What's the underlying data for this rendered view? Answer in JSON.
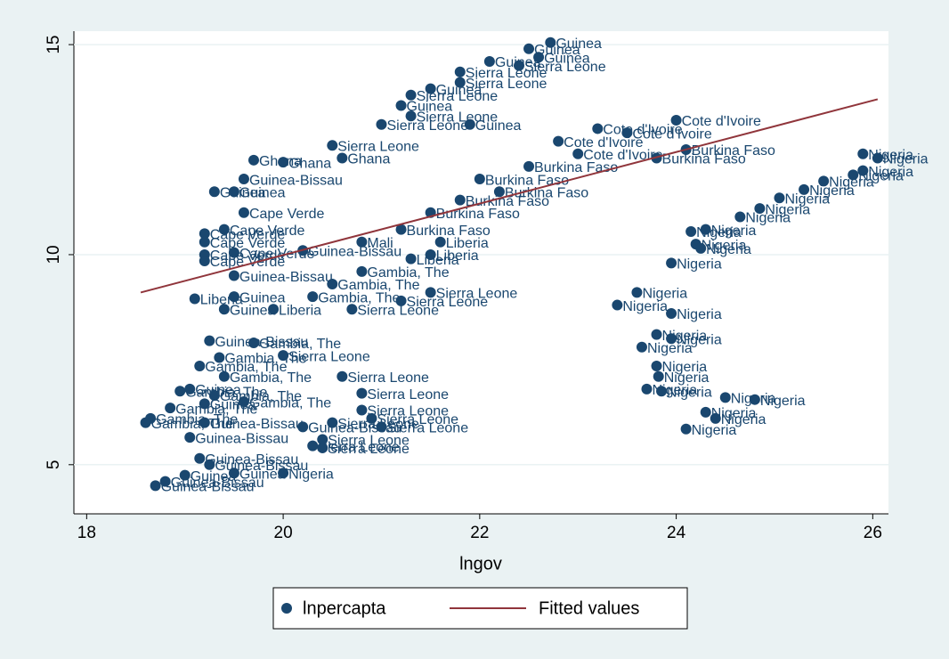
{
  "chart_data": {
    "type": "scatter",
    "x_label": "lngov",
    "xlim": [
      17.87,
      26.16
    ],
    "xticks": [
      18,
      20,
      22,
      24,
      26
    ],
    "ylim": [
      3.83,
      15.32
    ],
    "yticks": [
      5,
      10,
      15
    ],
    "grid": true,
    "legend": "bottom",
    "series": [
      {
        "name": "lnpercapta",
        "color": "#1a476f",
        "x": [
          22.72,
          22.5,
          22.6,
          22.4,
          22.1,
          21.8,
          21.8,
          21.5,
          21.3,
          21.2,
          21.3,
          21.0,
          21.9,
          23.2,
          24.0,
          23.5,
          22.8,
          24.1,
          23.8,
          23.0,
          22.5,
          22.0,
          22.2,
          21.8,
          21.5,
          21.2,
          21.6,
          21.5,
          21.3,
          20.8,
          20.5,
          20.6,
          20.0,
          19.7,
          19.6,
          19.5,
          19.3,
          19.6,
          19.4,
          19.2,
          19.2,
          19.2,
          19.2,
          19.5,
          20.2,
          19.5,
          20.8,
          20.5,
          19.1,
          19.5,
          19.4,
          19.9,
          20.7,
          21.2,
          21.5,
          20.3,
          19.25,
          19.7,
          19.35,
          20.0,
          19.15,
          19.4,
          20.6,
          20.8,
          19.05,
          18.95,
          19.3,
          19.6,
          19.2,
          20.8,
          18.85,
          18.65,
          18.6,
          19.2,
          20.2,
          20.5,
          20.9,
          21.0,
          19.05,
          20.3,
          20.4,
          20.4,
          19.15,
          19.25,
          20.0,
          19.5,
          19.0,
          18.8,
          18.7,
          25.9,
          26.05,
          25.9,
          25.8,
          25.5,
          25.3,
          25.05,
          24.85,
          24.65,
          24.3,
          24.15,
          24.2,
          24.25,
          23.95,
          23.6,
          23.4,
          23.95,
          23.8,
          23.95,
          23.65,
          23.8,
          23.82,
          23.7,
          23.85,
          24.5,
          24.8,
          24.3,
          24.4,
          24.1
        ],
        "values": [
          15.05,
          14.9,
          14.7,
          14.5,
          14.6,
          14.35,
          14.1,
          13.95,
          13.8,
          13.55,
          13.3,
          13.1,
          13.1,
          13.0,
          13.2,
          12.9,
          12.7,
          12.5,
          12.3,
          12.4,
          12.1,
          11.8,
          11.5,
          11.3,
          11.0,
          10.6,
          10.3,
          10.0,
          9.9,
          10.3,
          12.6,
          12.3,
          12.2,
          12.25,
          11.8,
          11.5,
          11.5,
          11.0,
          10.6,
          10.5,
          10.3,
          10.0,
          9.85,
          10.05,
          10.1,
          9.5,
          9.6,
          9.3,
          8.95,
          9.0,
          8.7,
          8.7,
          8.7,
          8.9,
          9.1,
          9.0,
          7.95,
          7.9,
          7.55,
          7.6,
          7.35,
          7.1,
          7.1,
          6.7,
          6.8,
          6.75,
          6.65,
          6.5,
          6.45,
          6.3,
          6.35,
          6.1,
          6.0,
          6.0,
          5.9,
          6.0,
          6.1,
          5.9,
          5.65,
          5.45,
          5.6,
          5.4,
          5.15,
          5.0,
          4.8,
          4.8,
          4.75,
          4.6,
          4.5,
          12.4,
          12.3,
          12.0,
          11.9,
          11.75,
          11.55,
          11.35,
          11.1,
          10.9,
          10.6,
          10.55,
          10.25,
          10.15,
          9.8,
          9.1,
          8.8,
          8.6,
          8.1,
          8.0,
          7.8,
          7.35,
          7.1,
          6.8,
          6.75,
          6.6,
          6.55,
          6.25,
          6.1,
          5.85
        ],
        "labels": [
          "Guinea",
          "Guinea",
          "Guinea",
          "Sierra Leone",
          "Guinea",
          "Sierra Leone",
          "Sierra Leone",
          "Guinea",
          "Sierra Leone",
          "Guinea",
          "Sierra Leone",
          "Sierra Leone",
          "Guinea",
          "Cote d'Ivoire",
          "Cote d'Ivoire",
          "Cote d'Ivoire",
          "Cote d'Ivoire",
          "Burkina Faso",
          "Burkina Faso",
          "Cote d'Ivoire",
          "Burkina Faso",
          "Burkina Faso",
          "Burkina Faso",
          "Burkina Faso",
          "Burkina Faso",
          "Burkina Faso",
          "Liberia",
          "Liberia",
          "Liberia",
          "Mali",
          "Sierra Leone",
          "Ghana",
          "Ghana",
          "Ghana",
          "Guinea-Bissau",
          "Guinea",
          "Guinea",
          "Cape Verde",
          "Cape Verde",
          "Cape Verde",
          "Cape Verde",
          "Cape Verde",
          "Cape Verde",
          "Cape Verde",
          "Guinea-Bissau",
          "Guinea-Bissau",
          "Gambia, The",
          "Gambia, The",
          "Liberia",
          "Guinea",
          "Guinea",
          "Liberia",
          "Sierra Leone",
          "Sierra Leone",
          "Sierra Leone",
          "Gambia, The",
          "Guinea-Bissau",
          "Gambia, The",
          "Gambia, The",
          "Sierra Leone",
          "Gambia, The",
          "Gambia, The",
          "Sierra Leone",
          "Sierra Leone",
          "Guinea",
          "Gambia, The",
          "Gambia, The",
          "Gambia, The",
          "Guinea",
          "Sierra Leone",
          "Gambia, The",
          "Gambia, The",
          "Gambia, The",
          "Guinea-Bissau",
          "Guinea-Bissau",
          "Sierra Leone",
          "Sierra Leone",
          "Sierra Leone",
          "Guinea-Bissau",
          "Sierra Leone",
          "Sierra Leone",
          "Sierra Leone",
          "Guinea-Bissau",
          "Guinea-Bissau",
          "Nigeria",
          "Guinea",
          "Guinea",
          "Guinea-Bissau",
          "Guinea-Bissau",
          "Nigeria",
          "Nigeria",
          "Nigeria",
          "Nigeria",
          "Nigeria",
          "Nigeria",
          "Nigeria",
          "Nigeria",
          "Nigeria",
          "Nigeria",
          "Nigeria",
          "Nigeria",
          "Nigeria",
          "Nigeria",
          "Nigeria",
          "Nigeria",
          "Nigeria",
          "Nigeria",
          "Nigeria",
          "Nigeria",
          "Nigeria",
          "Nigeria",
          "Nigeria",
          "Nigeria",
          "Nigeria",
          "Nigeria",
          "Nigeria",
          "Nigeria",
          "Nigeria"
        ]
      },
      {
        "name": "Fitted values",
        "type": "line",
        "color": "#90353b",
        "x": [
          18.55,
          26.05
        ],
        "values": [
          9.1,
          13.7
        ]
      }
    ]
  }
}
